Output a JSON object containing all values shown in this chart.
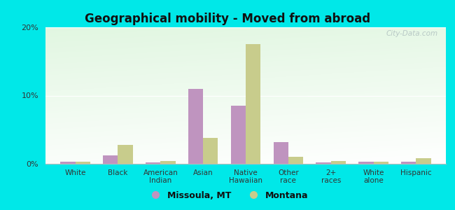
{
  "title": "Geographical mobility - Moved from abroad",
  "categories": [
    "White",
    "Black",
    "American\nIndian",
    "Asian",
    "Native\nHawaiian",
    "Other\nrace",
    "2+\nraces",
    "White\nalone",
    "Hispanic"
  ],
  "missoula_values": [
    0.3,
    1.2,
    0.2,
    11.0,
    8.5,
    3.2,
    0.2,
    0.3,
    0.3
  ],
  "montana_values": [
    0.3,
    2.8,
    0.4,
    3.8,
    17.5,
    1.0,
    0.4,
    0.3,
    0.8
  ],
  "missoula_color": "#bf94bf",
  "montana_color": "#c8cc8c",
  "ylim": [
    0,
    20
  ],
  "yticks": [
    0,
    10,
    20
  ],
  "ytick_labels": [
    "0%",
    "10%",
    "20%"
  ],
  "background_outer": "#00e8e8",
  "bar_width": 0.35,
  "legend_missoula": "Missoula, MT",
  "legend_montana": "Montana",
  "watermark": "City-Data.com"
}
